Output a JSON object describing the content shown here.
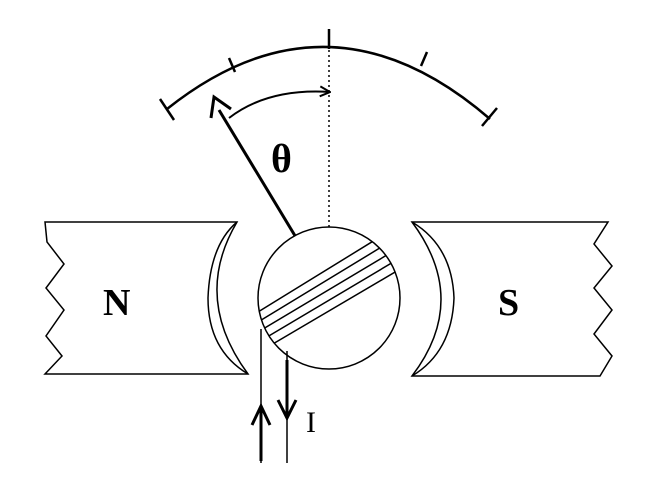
{
  "diagram": {
    "labels": {
      "north_pole": "N",
      "south_pole": "S",
      "angle": "θ",
      "current": "I"
    },
    "colors": {
      "stroke": "#000000",
      "background": "#ffffff"
    }
  }
}
